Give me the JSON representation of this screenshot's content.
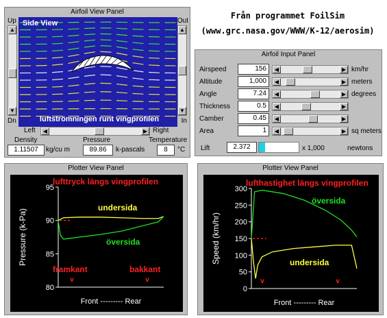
{
  "heading": {
    "line1": "Från programmet FoilSim",
    "line2": "(www.grc.nasa.gov/WWW/K-12/aerosim)"
  },
  "view_panel": {
    "title": "Airfoil View Panel",
    "up": "Up",
    "out": "Out",
    "dn": "Dn",
    "in": "In",
    "left": "Left",
    "right": "Right",
    "side_view": "Side View",
    "caption": "luftströmningen runt vingprofilen",
    "density_label": "Density",
    "density_value": "1.11507",
    "density_unit": "kg/cu m",
    "pressure_label": "Pressure",
    "pressure_value": "89.86",
    "pressure_unit": "k-pascals",
    "temperature_label": "Temperature",
    "temperature_value": "8",
    "temperature_unit": "°C",
    "colors": {
      "background": "#2020a8",
      "stream_lower": "#e8e8e8",
      "stream_upper": "#40e040",
      "stream_mid": "#e8e040"
    }
  },
  "input_panel": {
    "title": "Airfoil Input Panel",
    "rows": [
      {
        "label": "Airspeed",
        "value": "156",
        "unit": "km/hr",
        "level": 0.45
      },
      {
        "label": "Altitude",
        "value": "1,000",
        "unit": "meters",
        "level": 0.1
      },
      {
        "label": "Angle",
        "value": "7.24",
        "unit": "degrees",
        "level": 0.6
      },
      {
        "label": "Thickness",
        "value": "0.5",
        "unit": "",
        "level": 0.42
      },
      {
        "label": "Camber",
        "value": "0.45",
        "unit": "",
        "level": 0.55
      },
      {
        "label": "Area",
        "value": "1",
        "unit": "sq meters",
        "level": 0.05
      }
    ],
    "lift_label": "Lift",
    "lift_value": "2.372",
    "lift_unit_mult": "x 1,000",
    "lift_unit": "newtons",
    "lift_bar_color": "#20d0e0"
  },
  "pressure_plot": {
    "title": "Plotter View Panel",
    "annotation": "lufttryck längs vingprofilen",
    "label_under": "undersida",
    "label_over": "översida",
    "label_front_edge": "framkant",
    "label_back_edge": "bakkant",
    "marker": "v",
    "xaxis": "Front --------- Rear",
    "colors": {
      "under": "#ffff40",
      "over": "#20e020",
      "annotation": "#ff2020"
    }
  },
  "speed_plot": {
    "title": "Plotter View Panel",
    "annotation": "lufthastighet längs vingprofilen",
    "label_over": "översida",
    "label_under": "undersida",
    "marker": "v",
    "xaxis": "Front --------- Rear",
    "colors": {
      "under": "#ffff40",
      "over": "#20e020",
      "annotation": "#ff2020"
    }
  },
  "chart_data": [
    {
      "type": "line",
      "ylabel": "Pressure (k-Pa)",
      "xlabel": "Front --------- Rear",
      "ylim": [
        80,
        95
      ],
      "yticks": [
        "80",
        "85",
        "90",
        "95"
      ],
      "series": [
        {
          "name": "undersida",
          "x": [
            0.0,
            0.05,
            0.2,
            0.4,
            0.6,
            0.8,
            0.95,
            1.0
          ],
          "values": [
            90.0,
            90.4,
            90.5,
            90.5,
            90.4,
            90.3,
            90.3,
            90.6
          ]
        },
        {
          "name": "översida",
          "x": [
            0.0,
            0.02,
            0.05,
            0.1,
            0.2,
            0.4,
            0.6,
            0.8,
            0.95,
            1.0
          ],
          "values": [
            90.0,
            87.8,
            87.2,
            87.3,
            87.5,
            87.9,
            88.4,
            89.2,
            89.8,
            90.6
          ]
        }
      ]
    },
    {
      "type": "line",
      "ylabel": "Speed (km/hr)",
      "xlabel": "Front --------- Rear",
      "ylim": [
        0,
        300
      ],
      "yticks": [
        "0",
        "50",
        "100",
        "150",
        "200",
        "250",
        "300"
      ],
      "series": [
        {
          "name": "översida",
          "x": [
            0.0,
            0.03,
            0.1,
            0.3,
            0.5,
            0.7,
            0.85,
            0.95,
            1.0
          ],
          "values": [
            150,
            290,
            295,
            285,
            265,
            235,
            205,
            175,
            155
          ]
        },
        {
          "name": "undersida",
          "x": [
            0.0,
            0.02,
            0.04,
            0.06,
            0.1,
            0.2,
            0.4,
            0.6,
            0.8,
            0.95,
            1.0
          ],
          "values": [
            150,
            80,
            30,
            70,
            95,
            110,
            120,
            125,
            130,
            130,
            60
          ]
        }
      ]
    }
  ]
}
